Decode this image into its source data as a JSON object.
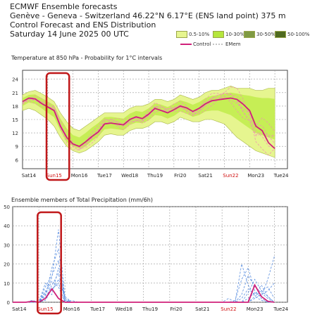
{
  "header": {
    "line1": "ECMWF Ensemble forecasts",
    "line2": "Genève - Geneva - Switzerland 46.22°N 6.17°E (ENS land point) 375 m",
    "line3": "Control Forecast and ENS Distribution",
    "line4": "Saturday 14 June 2025 00 UTC"
  },
  "legend": {
    "bands": [
      {
        "label": "0.5-10%",
        "color": "#e6f58f"
      },
      {
        "label": "10-30%",
        "color": "#b5e63c"
      },
      {
        "label": "30-50%",
        "color": "#7f9a42"
      },
      {
        "label": "50-100%",
        "color": "#4f6a1f"
      }
    ],
    "control_label": "Control",
    "emem_label": "EMem"
  },
  "colors": {
    "control": "#d0207a",
    "members_temp": "#f08cb4",
    "members_precip": "#5b8fe0",
    "band_outer": "#e6f58f",
    "band_mid": "#c6ee55",
    "highlight": "#c0181a",
    "weekend": "#d01010"
  },
  "chart_data": [
    {
      "type": "area",
      "title": "Temperature at 850 hPa - Probability for 1°C intervals",
      "ylim": [
        4,
        26
      ],
      "yticks": [
        6,
        9,
        12,
        15,
        18,
        21,
        24
      ],
      "x_unit": "days from Sat14 00 UTC",
      "xlim": [
        0,
        10.5
      ],
      "day_labels": [
        {
          "label": "Sat14",
          "x": 0.25,
          "weekend": false
        },
        {
          "label": "Sun15",
          "x": 1.25,
          "weekend": true
        },
        {
          "label": "Mon16",
          "x": 2.25,
          "weekend": false
        },
        {
          "label": "Tue17",
          "x": 3.25,
          "weekend": false
        },
        {
          "label": "Wed18",
          "x": 4.25,
          "weekend": false
        },
        {
          "label": "Thu19",
          "x": 5.25,
          "weekend": false
        },
        {
          "label": "Fri20",
          "x": 6.25,
          "weekend": false
        },
        {
          "label": "Sat21",
          "x": 7.25,
          "weekend": false
        },
        {
          "label": "Sun22",
          "x": 8.25,
          "weekend": true
        },
        {
          "label": "Mon23",
          "x": 9.25,
          "weekend": false
        },
        {
          "label": "Tue24",
          "x": 10.25,
          "weekend": false
        }
      ],
      "x": [
        0,
        0.25,
        0.5,
        0.75,
        1,
        1.25,
        1.5,
        1.75,
        2,
        2.25,
        2.5,
        2.75,
        3,
        3.25,
        3.5,
        3.75,
        4,
        4.25,
        4.5,
        4.75,
        5,
        5.25,
        5.5,
        5.75,
        6,
        6.25,
        6.5,
        6.75,
        7,
        7.25,
        7.5,
        7.75,
        8,
        8.25,
        8.5,
        8.75,
        9,
        9.25,
        9.5,
        9.75,
        10
      ],
      "control": [
        19.0,
        19.8,
        19.6,
        18.6,
        17.8,
        17.0,
        13.5,
        11.0,
        9.5,
        9.0,
        10.0,
        11.2,
        12.2,
        14.0,
        14.2,
        14.0,
        13.8,
        15.0,
        15.6,
        15.2,
        16.2,
        17.5,
        17.0,
        16.5,
        17.2,
        18.0,
        17.6,
        16.8,
        17.5,
        18.5,
        19.2,
        19.4,
        19.6,
        19.8,
        19.5,
        18.4,
        17.0,
        13.5,
        12.5,
        9.8,
        8.5
      ],
      "band_outer_low": [
        17.0,
        17.5,
        17.0,
        16.0,
        15.0,
        13.5,
        11.0,
        9.0,
        8.0,
        7.5,
        8.0,
        9.0,
        10.0,
        11.5,
        11.8,
        11.5,
        11.5,
        12.5,
        13.0,
        13.0,
        13.5,
        14.5,
        14.5,
        14.0,
        14.5,
        15.5,
        15.0,
        14.5,
        14.5,
        15.0,
        15.0,
        14.5,
        14.0,
        12.5,
        11.0,
        10.0,
        9.0,
        8.0,
        7.5,
        7.0,
        6.5
      ],
      "band_outer_high": [
        20.5,
        21.2,
        21.5,
        20.8,
        20.0,
        19.0,
        16.5,
        14.5,
        13.0,
        12.5,
        13.5,
        14.5,
        15.5,
        16.5,
        16.5,
        16.5,
        16.5,
        17.5,
        18.0,
        18.0,
        18.5,
        19.5,
        19.5,
        19.0,
        19.5,
        20.5,
        20.0,
        19.5,
        20.0,
        21.0,
        21.5,
        21.5,
        22.0,
        22.5,
        22.0,
        22.0,
        22.0,
        21.5,
        21.5,
        22.0,
        22.0
      ],
      "band_mid_low": [
        18.0,
        18.8,
        18.5,
        17.5,
        16.5,
        15.5,
        12.5,
        10.0,
        9.0,
        8.5,
        9.0,
        10.2,
        11.2,
        12.8,
        13.0,
        12.8,
        12.6,
        13.8,
        14.3,
        14.2,
        14.8,
        16.0,
        15.8,
        15.2,
        15.8,
        16.8,
        16.3,
        15.6,
        16.0,
        16.8,
        17.0,
        17.0,
        16.5,
        16.0,
        15.0,
        14.0,
        13.0,
        12.0,
        11.5,
        11.0,
        10.5
      ],
      "band_mid_high": [
        19.8,
        20.5,
        20.6,
        19.8,
        19.0,
        18.2,
        15.2,
        13.0,
        11.5,
        11.0,
        12.0,
        13.2,
        14.2,
        15.5,
        15.6,
        15.4,
        15.2,
        16.3,
        16.9,
        16.7,
        17.5,
        18.6,
        18.3,
        17.8,
        18.5,
        19.3,
        18.9,
        18.3,
        18.9,
        19.8,
        20.3,
        20.4,
        20.8,
        21.0,
        20.8,
        20.5,
        20.3,
        20.0,
        19.8,
        19.8,
        19.6
      ]
    },
    {
      "type": "line",
      "title": "Ensemble members of Total Precipitation (mm/6h)",
      "ylim": [
        0,
        50
      ],
      "yticks": [
        0,
        10,
        20,
        30,
        40,
        50
      ],
      "x_unit": "days from Sat14 00 UTC",
      "xlim": [
        0,
        10.5
      ],
      "x": [
        0,
        0.25,
        0.5,
        0.75,
        1,
        1.25,
        1.5,
        1.75,
        2,
        2.25,
        2.5,
        2.75,
        3,
        3.25,
        3.5,
        3.75,
        4,
        4.25,
        4.5,
        4.75,
        5,
        5.25,
        5.5,
        5.75,
        6,
        6.25,
        6.5,
        6.75,
        7,
        7.25,
        7.5,
        7.75,
        8,
        8.25,
        8.5,
        8.75,
        9,
        9.25,
        9.5,
        9.75,
        10
      ],
      "control": [
        0,
        0,
        0,
        0.5,
        0,
        2,
        7,
        2,
        0,
        0,
        0,
        0,
        0,
        0,
        0,
        0,
        0,
        0,
        0,
        0,
        0,
        0,
        0,
        0,
        0,
        0,
        0,
        0,
        0,
        0,
        0,
        0,
        0,
        0,
        0,
        0,
        0,
        9,
        3,
        0.5,
        0
      ],
      "members": [
        [
          0,
          0,
          0,
          1,
          0,
          5,
          13,
          38,
          2,
          0,
          0,
          0,
          0,
          0,
          0,
          0,
          0,
          0,
          0,
          0,
          0,
          0,
          0,
          0,
          0,
          0,
          0,
          0,
          0,
          0,
          0,
          0,
          0,
          0,
          1,
          12,
          18,
          6,
          2,
          0,
          0
        ],
        [
          0,
          0,
          0,
          0,
          0,
          3,
          18,
          28,
          1,
          0,
          0,
          0,
          0,
          0,
          0,
          0,
          0,
          0,
          0,
          0,
          0,
          0,
          0,
          0,
          0,
          0,
          0,
          0,
          0,
          0,
          0,
          0,
          0,
          2,
          0,
          20,
          9,
          3,
          1,
          0,
          0
        ],
        [
          0,
          0,
          0,
          0,
          0,
          8,
          14,
          22,
          0,
          1,
          0,
          0,
          0,
          0,
          0,
          0,
          0,
          0,
          0,
          0,
          0,
          0,
          0,
          0,
          0,
          0,
          0,
          0,
          0,
          0,
          0,
          0,
          0,
          0,
          0,
          4,
          14,
          8,
          5,
          2,
          0
        ],
        [
          0,
          0,
          0,
          0,
          0,
          10,
          6,
          12,
          3,
          0,
          0,
          0,
          0,
          0,
          0,
          0,
          0,
          0,
          0,
          0,
          0,
          0,
          0,
          0,
          0,
          0,
          0,
          0,
          0,
          0,
          0,
          0,
          0,
          0,
          0,
          0,
          5,
          12,
          6,
          3,
          0
        ],
        [
          0,
          0,
          0,
          0,
          0,
          2,
          9,
          15,
          1,
          0,
          0,
          0,
          0,
          0,
          0,
          0,
          0,
          0,
          0,
          0,
          0,
          0,
          0,
          0,
          0,
          0,
          0,
          0,
          0,
          0,
          0,
          0,
          0,
          0,
          0,
          2,
          7,
          4,
          9,
          3,
          0
        ],
        [
          0,
          0,
          0,
          0,
          0,
          4,
          11,
          8,
          0,
          0,
          0,
          0,
          0,
          0,
          0,
          0,
          0,
          0,
          0,
          0,
          0,
          0,
          0,
          0,
          0,
          0,
          0,
          0,
          0,
          0,
          0,
          0,
          0,
          0,
          0,
          0,
          2,
          5,
          3,
          12,
          24
        ],
        [
          0,
          0,
          0,
          0,
          0,
          6,
          4,
          18,
          2,
          0,
          0,
          0,
          0,
          0,
          0,
          0,
          0,
          0,
          0,
          0,
          0,
          0,
          0,
          0,
          0,
          0,
          0,
          0,
          0,
          0,
          0,
          0,
          0,
          0,
          0,
          0,
          0,
          3,
          6,
          8,
          2
        ],
        [
          0,
          0,
          0,
          0,
          0,
          1,
          7,
          10,
          0,
          0,
          0,
          0,
          0,
          0,
          0,
          0,
          0,
          0,
          0,
          0,
          0,
          0,
          0,
          0,
          0,
          0,
          0,
          0,
          0,
          0,
          0,
          0,
          0,
          0,
          0,
          0,
          0,
          2,
          4,
          6,
          10
        ]
      ]
    }
  ]
}
